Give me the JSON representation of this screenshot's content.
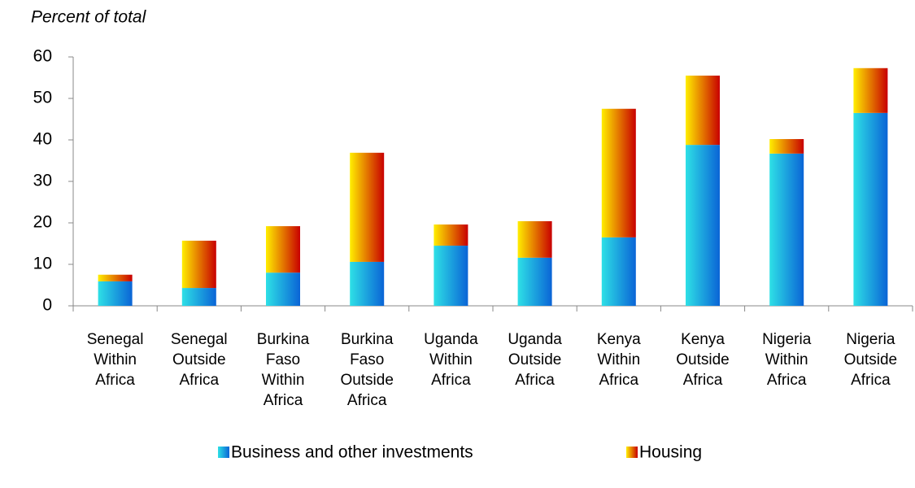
{
  "chart_data": {
    "type": "stacked_bar",
    "y_axis_label": "Percent of total",
    "categories": [
      "Senegal Within Africa",
      "Senegal Outside Africa",
      "Burkina Faso Within Africa",
      "Burkina Faso Outside Africa",
      "Uganda Within Africa",
      "Uganda Outside Africa",
      "Kenya Within Africa",
      "Kenya Outside Africa",
      "Nigeria Within Africa",
      "Nigeria Outside Africa"
    ],
    "series": [
      {
        "name": "Business and other investments",
        "color": [
          "#2ee0e6",
          "#0a64d6"
        ],
        "values": [
          5.9,
          4.3,
          8.0,
          10.6,
          14.5,
          11.6,
          16.5,
          38.8,
          36.7,
          46.5
        ]
      },
      {
        "name": "Housing",
        "color": [
          "#ffee00",
          "#c80000"
        ],
        "values": [
          1.6,
          11.4,
          11.2,
          26.3,
          5.1,
          8.8,
          31.0,
          16.7,
          3.5,
          10.8
        ]
      }
    ],
    "ylim": [
      0,
      60
    ],
    "yticks": [
      0,
      10,
      20,
      30,
      40,
      50,
      60
    ],
    "legend": "bottom"
  }
}
